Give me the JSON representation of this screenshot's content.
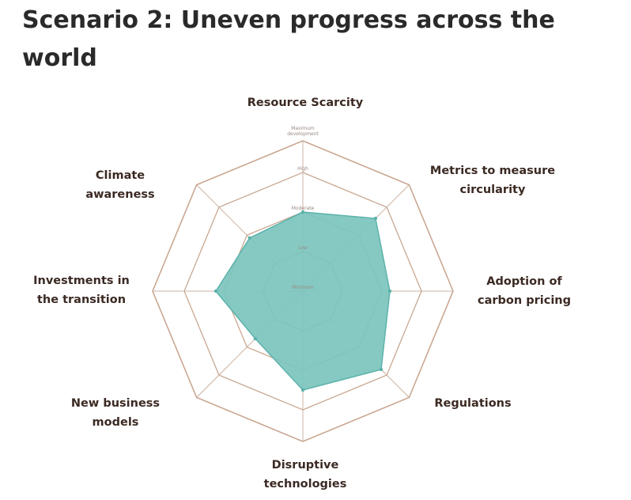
{
  "title": "Scenario 2: Uneven progress across the world",
  "chart_data": {
    "type": "radar",
    "axes": [
      [
        "Resource Scarcity"
      ],
      [
        "Metrics to measure",
        "circularity"
      ],
      [
        "Adoption of",
        "carbon pricing"
      ],
      [
        "Regulations"
      ],
      [
        "Disruptive",
        "technologies"
      ],
      [
        "New business",
        "models"
      ],
      [
        "Investments in",
        "the transition"
      ],
      [
        "Climate",
        "awareness"
      ]
    ],
    "levels": [
      "Minimum",
      "Low",
      "Moderate",
      "High",
      "Maximum development"
    ],
    "rmax": 4,
    "values": [
      2.0,
      2.6,
      2.2,
      2.8,
      2.5,
      1.7,
      2.2,
      1.9
    ],
    "colors": {
      "fill": "#7cc4be",
      "stroke": "#5bb2ab",
      "grid": "#c9a892",
      "axis": "#cbb3a3",
      "label": "#3b2a23"
    }
  }
}
